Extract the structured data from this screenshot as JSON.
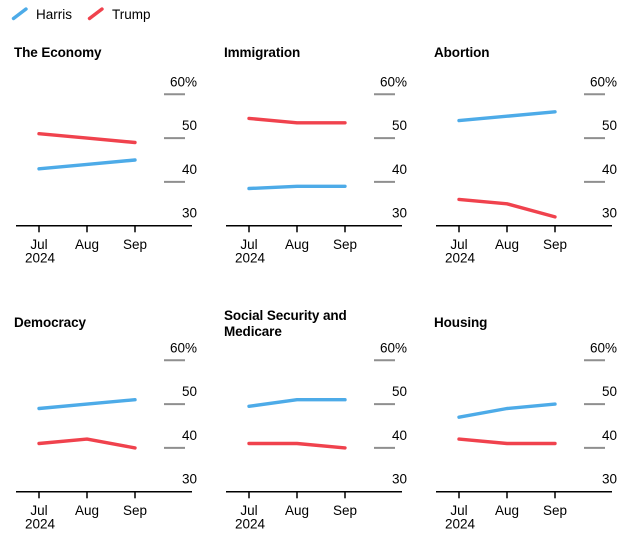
{
  "legend": {
    "items": [
      {
        "label": "Harris",
        "color": "#4dabe8"
      },
      {
        "label": "Trump",
        "color": "#f0424d"
      }
    ]
  },
  "colors": {
    "axis": "#000000",
    "tick": "#8f8f8f",
    "label": "#000000"
  },
  "chart_data": [
    {
      "type": "line",
      "title": "The Economy",
      "x": [
        "Jul",
        "Aug",
        "Sep"
      ],
      "x_sublabel": "2024",
      "ylim": [
        30,
        62
      ],
      "yticks": [
        {
          "value": 30,
          "label": "30"
        },
        {
          "value": 40,
          "label": "40"
        },
        {
          "value": 50,
          "label": "50"
        },
        {
          "value": 60,
          "label": "60%"
        }
      ],
      "legend_position": "top-left",
      "grid": "tick-dashes",
      "series": [
        {
          "name": "Harris",
          "values": [
            43,
            44,
            45
          ]
        },
        {
          "name": "Trump",
          "values": [
            51,
            50,
            49
          ]
        }
      ]
    },
    {
      "type": "line",
      "title": "Immigration",
      "x": [
        "Jul",
        "Aug",
        "Sep"
      ],
      "x_sublabel": "2024",
      "ylim": [
        30,
        62
      ],
      "yticks": [
        {
          "value": 30,
          "label": "30"
        },
        {
          "value": 40,
          "label": "40"
        },
        {
          "value": 50,
          "label": "50"
        },
        {
          "value": 60,
          "label": "60%"
        }
      ],
      "series": [
        {
          "name": "Harris",
          "values": [
            38.5,
            39,
            39
          ]
        },
        {
          "name": "Trump",
          "values": [
            54.5,
            53.5,
            53.5
          ]
        }
      ]
    },
    {
      "type": "line",
      "title": "Abortion",
      "x": [
        "Jul",
        "Aug",
        "Sep"
      ],
      "x_sublabel": "2024",
      "ylim": [
        30,
        62
      ],
      "yticks": [
        {
          "value": 30,
          "label": "30"
        },
        {
          "value": 40,
          "label": "40"
        },
        {
          "value": 50,
          "label": "50"
        },
        {
          "value": 60,
          "label": "60%"
        }
      ],
      "series": [
        {
          "name": "Harris",
          "values": [
            54,
            55,
            56
          ]
        },
        {
          "name": "Trump",
          "values": [
            36,
            35,
            32
          ]
        }
      ]
    },
    {
      "type": "line",
      "title": "Democracy",
      "x": [
        "Jul",
        "Aug",
        "Sep"
      ],
      "x_sublabel": "2024",
      "ylim": [
        30,
        62
      ],
      "yticks": [
        {
          "value": 30,
          "label": "30"
        },
        {
          "value": 40,
          "label": "40"
        },
        {
          "value": 50,
          "label": "50"
        },
        {
          "value": 60,
          "label": "60%"
        }
      ],
      "series": [
        {
          "name": "Harris",
          "values": [
            49,
            50,
            51
          ]
        },
        {
          "name": "Trump",
          "values": [
            41,
            42,
            40
          ]
        }
      ]
    },
    {
      "type": "line",
      "title": "Social Security and Medicare",
      "x": [
        "Jul",
        "Aug",
        "Sep"
      ],
      "x_sublabel": "2024",
      "ylim": [
        30,
        62
      ],
      "yticks": [
        {
          "value": 30,
          "label": "30"
        },
        {
          "value": 40,
          "label": "40"
        },
        {
          "value": 50,
          "label": "50"
        },
        {
          "value": 60,
          "label": "60%"
        }
      ],
      "series": [
        {
          "name": "Harris",
          "values": [
            49.5,
            51,
            51
          ]
        },
        {
          "name": "Trump",
          "values": [
            41,
            41,
            40
          ]
        }
      ]
    },
    {
      "type": "line",
      "title": "Housing",
      "x": [
        "Jul",
        "Aug",
        "Sep"
      ],
      "x_sublabel": "2024",
      "ylim": [
        30,
        62
      ],
      "yticks": [
        {
          "value": 30,
          "label": "30"
        },
        {
          "value": 40,
          "label": "40"
        },
        {
          "value": 50,
          "label": "50"
        },
        {
          "value": 60,
          "label": "60%"
        }
      ],
      "series": [
        {
          "name": "Harris",
          "values": [
            47,
            49,
            50
          ]
        },
        {
          "name": "Trump",
          "values": [
            42,
            41,
            41
          ]
        }
      ]
    }
  ]
}
